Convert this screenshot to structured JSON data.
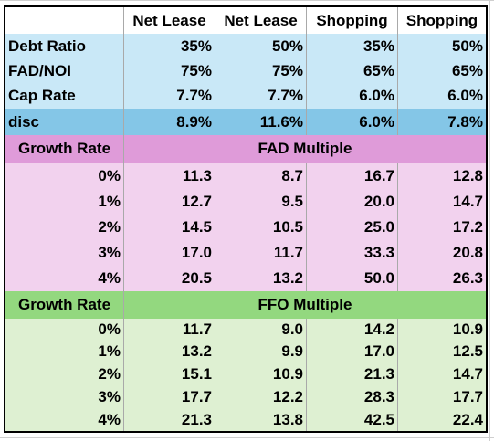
{
  "header": {
    "c0": "",
    "c1": "Net Lease",
    "c2": "Net Lease",
    "c3": "Shopping",
    "c4": "Shopping"
  },
  "params": [
    {
      "label": "Debt Ratio",
      "v": [
        "35%",
        "50%",
        "35%",
        "50%"
      ]
    },
    {
      "label": "FAD/NOI",
      "v": [
        "75%",
        "75%",
        "65%",
        "65%"
      ]
    },
    {
      "label": "Cap Rate",
      "v": [
        "7.7%",
        "7.7%",
        "6.0%",
        "6.0%"
      ]
    }
  ],
  "disc": {
    "label": "disc",
    "v": [
      "8.9%",
      "11.6%",
      "6.0%",
      "7.8%"
    ]
  },
  "fad": {
    "label": "Growth Rate",
    "title": "FAD Multiple",
    "rows": [
      {
        "g": "0%",
        "v": [
          "11.3",
          "8.7",
          "16.7",
          "12.8"
        ]
      },
      {
        "g": "1%",
        "v": [
          "12.7",
          "9.5",
          "20.0",
          "14.7"
        ]
      },
      {
        "g": "2%",
        "v": [
          "14.5",
          "10.5",
          "25.0",
          "17.2"
        ]
      },
      {
        "g": "3%",
        "v": [
          "17.0",
          "11.7",
          "33.3",
          "20.8"
        ]
      },
      {
        "g": "4%",
        "v": [
          "20.5",
          "13.2",
          "50.0",
          "26.3"
        ]
      }
    ]
  },
  "ffo": {
    "label": "Growth Rate",
    "title": "FFO Multiple",
    "rows": [
      {
        "g": "0%",
        "v": [
          "11.7",
          "9.0",
          "14.2",
          "10.9"
        ]
      },
      {
        "g": "1%",
        "v": [
          "13.2",
          "9.9",
          "17.0",
          "12.5"
        ]
      },
      {
        "g": "2%",
        "v": [
          "15.1",
          "10.9",
          "21.3",
          "14.7"
        ]
      },
      {
        "g": "3%",
        "v": [
          "17.7",
          "12.2",
          "28.3",
          "17.7"
        ]
      },
      {
        "g": "4%",
        "v": [
          "21.3",
          "13.8",
          "42.5",
          "22.4"
        ]
      }
    ]
  }
}
